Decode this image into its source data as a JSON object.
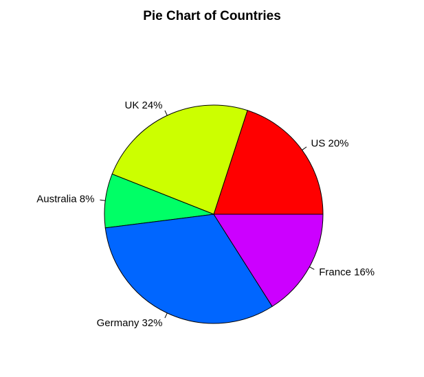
{
  "chart_data": {
    "type": "pie",
    "title": "Pie Chart of Countries",
    "slices": [
      {
        "label": "US 20%",
        "value": 20,
        "color": "#FF0000"
      },
      {
        "label": "UK 24%",
        "value": 24,
        "color": "#CCFF00"
      },
      {
        "label": "Australia 8%",
        "value": 8,
        "color": "#00FF66"
      },
      {
        "label": "Germany 32%",
        "value": 32,
        "color": "#0066FF"
      },
      {
        "label": "France 16%",
        "value": 16,
        "color": "#CC00FF"
      }
    ]
  }
}
